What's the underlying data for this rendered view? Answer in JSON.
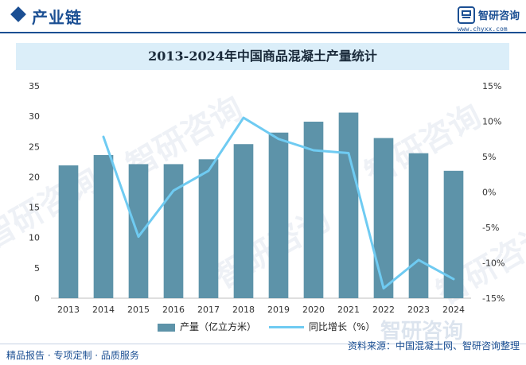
{
  "header": {
    "section_title": "产业链",
    "brand_name": "智研咨询",
    "brand_url": "www.chyxx.com"
  },
  "watermark_text": "智研咨询",
  "chart_data": {
    "type": "bar",
    "title": "2013-2024年中国商品混凝土产量统计",
    "categories": [
      "2013",
      "2014",
      "2015",
      "2016",
      "2017",
      "2018",
      "2019",
      "2020",
      "2021",
      "2022",
      "2023",
      "2024"
    ],
    "series": [
      {
        "name": "产量（亿立方米）",
        "type": "bar",
        "axis": "left",
        "color": "#5d93a9",
        "values": [
          21.9,
          23.6,
          22.1,
          22.1,
          22.9,
          25.4,
          27.3,
          29.1,
          30.6,
          26.4,
          23.9,
          21.0
        ]
      },
      {
        "name": "同比增长（%）",
        "type": "line",
        "axis": "right",
        "color": "#6fcbf2",
        "values": [
          null,
          7.8,
          -6.3,
          0.2,
          3.0,
          10.5,
          7.5,
          5.9,
          5.5,
          -13.6,
          -9.6,
          -12.3
        ]
      }
    ],
    "y_left": {
      "min": 0,
      "max": 35,
      "ticks": [
        "0",
        "5",
        "10",
        "15",
        "20",
        "25",
        "30",
        "35"
      ]
    },
    "y_right": {
      "min": -15,
      "max": 15,
      "ticks": [
        "-15%",
        "-10%",
        "-5%",
        "0%",
        "5%",
        "10%",
        "15%"
      ]
    },
    "grid": false,
    "legend_position": "bottom"
  },
  "footer": {
    "left_text": "精品报告 · 专项定制 · 品质服务",
    "source_text": "资料来源：中国混凝土网、智研咨询整理"
  }
}
